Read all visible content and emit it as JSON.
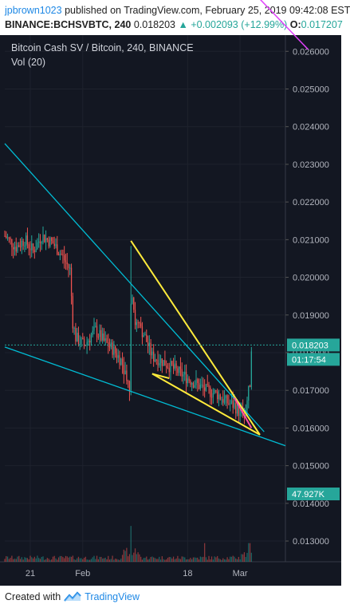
{
  "header": {
    "author": "jpbrown1023",
    "published_text": "published on TradingView.com, February 25, 2019 09:42:08 EST",
    "symbol": "BINANCE:BCHSVBTC, 240",
    "last_price": "0.018203",
    "change_text": "+0.002093 (+12.99%)",
    "open_label": "O:",
    "open_value": "0.017207"
  },
  "footer": {
    "created_with": "Created with",
    "brand": "TradingView"
  },
  "colors": {
    "up": "#26a69a",
    "down": "#ef5350",
    "trendline": "#00bcd4",
    "wedge": "#ffeb3b",
    "magenta": "#e040fb",
    "pink": "#ff4fa3",
    "bg": "#131722",
    "grid": "#1e222d",
    "axis_text": "#b2b5be"
  },
  "chart_data": {
    "type": "candlestick",
    "title": "Bitcoin Cash SV / Bitcoin, 240, BINANCE",
    "volume_label": "Vol (20)",
    "ylim": [
      0.01245,
      0.02643
    ],
    "y_ticks": [
      "0.026000",
      "0.025000",
      "0.024000",
      "0.023000",
      "0.022000",
      "0.021000",
      "0.020000",
      "0.019000",
      "0.018000",
      "0.017000",
      "0.016000",
      "0.015000",
      "0.014000",
      "0.013000"
    ],
    "x_ticks": [
      "21",
      "Feb",
      "18",
      "Mar"
    ],
    "last_price_label": "0.018203",
    "countdown_label": "01:17:54",
    "volume_value_label": "47.927K",
    "series_anchor_points": [
      {
        "x": 0,
        "y": 0.0211
      },
      {
        "x": 8,
        "y": 0.0208
      },
      {
        "x": 14,
        "y": 0.021
      },
      {
        "x": 20,
        "y": 0.0207
      },
      {
        "x": 26,
        "y": 0.0211
      },
      {
        "x": 34,
        "y": 0.0209
      },
      {
        "x": 40,
        "y": 0.0206
      },
      {
        "x": 46,
        "y": 0.0202
      },
      {
        "x": 48,
        "y": 0.0188
      },
      {
        "x": 50,
        "y": 0.0184
      },
      {
        "x": 56,
        "y": 0.0182
      },
      {
        "x": 64,
        "y": 0.0186
      },
      {
        "x": 70,
        "y": 0.0183
      },
      {
        "x": 76,
        "y": 0.0181
      },
      {
        "x": 82,
        "y": 0.0178
      },
      {
        "x": 86,
        "y": 0.0174
      },
      {
        "x": 88,
        "y": 0.017
      },
      {
        "x": 89,
        "y": 0.02
      },
      {
        "x": 92,
        "y": 0.0188
      },
      {
        "x": 98,
        "y": 0.0185
      },
      {
        "x": 104,
        "y": 0.0179
      },
      {
        "x": 110,
        "y": 0.0178
      },
      {
        "x": 118,
        "y": 0.0176
      },
      {
        "x": 126,
        "y": 0.0174
      },
      {
        "x": 134,
        "y": 0.0172
      },
      {
        "x": 142,
        "y": 0.017
      },
      {
        "x": 150,
        "y": 0.0169
      },
      {
        "x": 156,
        "y": 0.0167
      },
      {
        "x": 162,
        "y": 0.0166
      },
      {
        "x": 166,
        "y": 0.0164
      },
      {
        "x": 170,
        "y": 0.0165
      },
      {
        "x": 173,
        "y": 0.0172
      },
      {
        "x": 174,
        "y": 0.0182
      }
    ],
    "volume_spike_positions": [
      89,
      141,
      172,
      173
    ]
  },
  "annotations": {
    "cyan_upper": {
      "x1": 0,
      "y1": 0.02355,
      "x2": 183,
      "y2": 0.0159
    },
    "cyan_lower": {
      "x1": 0,
      "y1": 0.01815,
      "x2": 198,
      "y2": 0.01553
    },
    "yellow_a": {
      "x1": 89,
      "y1": 0.02097,
      "x2": 180,
      "y2": 0.01582
    },
    "yellow_b": {
      "x1": 104,
      "y1": 0.01744,
      "x2": 180,
      "y2": 0.01582
    },
    "yellow_c": {
      "x1": 104,
      "y1": 0.01744,
      "x2": 116,
      "y2": 0.01732
    },
    "pink_a": {
      "x1": 162,
      "y1": 0.0168,
      "x2": 174,
      "y2": 0.016
    },
    "magenta": {
      "x1": 172,
      "y1": 0.0277,
      "x2": 214,
      "y2": 0.02605
    }
  }
}
